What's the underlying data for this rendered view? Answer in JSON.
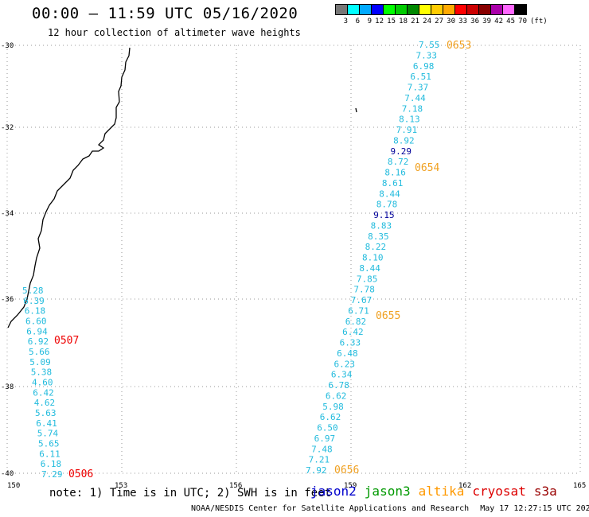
{
  "title": "00:00 – 11:59 UTC 05/16/2020",
  "subtitle": "12 hour collection of altimeter wave heights",
  "legend": {
    "labels": [
      "3",
      "6",
      "9",
      "12",
      "15",
      "18",
      "21",
      "24",
      "27",
      "30",
      "33",
      "36",
      "39",
      "42",
      "45",
      "70"
    ],
    "unit": "(ft)",
    "colors": [
      "#777777",
      "#00ffff",
      "#00aaff",
      "#0000ff",
      "#00ff00",
      "#00cc00",
      "#008800",
      "#ffff00",
      "#ffcc00",
      "#ffaa00",
      "#ff0000",
      "#cc0000",
      "#880000",
      "#aa00aa",
      "#ff66ff",
      "#000000"
    ]
  },
  "axes": {
    "lon_ticks": [
      "150",
      "153",
      "156",
      "159",
      "162",
      "165"
    ],
    "lat_ticks": [
      "-30",
      "-32",
      "-34",
      "-36",
      "-38",
      "-40"
    ]
  },
  "tracks": [
    {
      "satellite": "altika",
      "times": [
        {
          "label": "0653",
          "color": "#f0a020"
        },
        {
          "label": "0654",
          "color": "#f0a020"
        },
        {
          "label": "0655",
          "color": "#f0a020"
        },
        {
          "label": "0656",
          "color": "#f0a020"
        }
      ],
      "values": [
        {
          "v": "7.55",
          "c": "#22bbdd"
        },
        {
          "v": "7.33",
          "c": "#22bbdd"
        },
        {
          "v": "6.98",
          "c": "#22bbdd"
        },
        {
          "v": "6.51",
          "c": "#22bbdd"
        },
        {
          "v": "7.37",
          "c": "#22bbdd"
        },
        {
          "v": "7.44",
          "c": "#22bbdd"
        },
        {
          "v": "7.18",
          "c": "#22bbdd"
        },
        {
          "v": "8.13",
          "c": "#22bbdd"
        },
        {
          "v": "7.91",
          "c": "#22bbdd"
        },
        {
          "v": "8.92",
          "c": "#22bbdd"
        },
        {
          "v": "9.29",
          "c": "#000099"
        },
        {
          "v": "8.72",
          "c": "#22bbdd"
        },
        {
          "v": "8.16",
          "c": "#22bbdd"
        },
        {
          "v": "8.61",
          "c": "#22bbdd"
        },
        {
          "v": "8.44",
          "c": "#22bbdd"
        },
        {
          "v": "8.78",
          "c": "#22bbdd"
        },
        {
          "v": "9.15",
          "c": "#000099"
        },
        {
          "v": "8.83",
          "c": "#22bbdd"
        },
        {
          "v": "8.35",
          "c": "#22bbdd"
        },
        {
          "v": "8.22",
          "c": "#22bbdd"
        },
        {
          "v": "8.10",
          "c": "#22bbdd"
        },
        {
          "v": "8.44",
          "c": "#22bbdd"
        },
        {
          "v": "7.85",
          "c": "#22bbdd"
        },
        {
          "v": "7.78",
          "c": "#22bbdd"
        },
        {
          "v": "7.67",
          "c": "#22bbdd"
        },
        {
          "v": "6.71",
          "c": "#22bbdd"
        },
        {
          "v": "6.82",
          "c": "#22bbdd"
        },
        {
          "v": "6.42",
          "c": "#22bbdd"
        },
        {
          "v": "6.33",
          "c": "#22bbdd"
        },
        {
          "v": "6.48",
          "c": "#22bbdd"
        },
        {
          "v": "6.23",
          "c": "#22bbdd"
        },
        {
          "v": "6.34",
          "c": "#22bbdd"
        },
        {
          "v": "6.78",
          "c": "#22bbdd"
        },
        {
          "v": "6.62",
          "c": "#22bbdd"
        },
        {
          "v": "5.98",
          "c": "#22bbdd"
        },
        {
          "v": "6.62",
          "c": "#22bbdd"
        },
        {
          "v": "6.50",
          "c": "#22bbdd"
        },
        {
          "v": "6.97",
          "c": "#22bbdd"
        },
        {
          "v": "7.48",
          "c": "#22bbdd"
        },
        {
          "v": "7.21",
          "c": "#22bbdd"
        },
        {
          "v": "7.92",
          "c": "#22bbdd"
        }
      ]
    },
    {
      "satellite": "cryosat",
      "times": [
        {
          "label": "0507",
          "color": "#ee0000"
        },
        {
          "label": "0506",
          "color": "#ee0000"
        }
      ],
      "values": [
        {
          "v": "5.28",
          "c": "#22bbdd"
        },
        {
          "v": "6.39",
          "c": "#22bbdd"
        },
        {
          "v": "6.18",
          "c": "#22bbdd"
        },
        {
          "v": "6.60",
          "c": "#22bbdd"
        },
        {
          "v": "6.94",
          "c": "#22bbdd"
        },
        {
          "v": "6.92",
          "c": "#22bbdd"
        },
        {
          "v": "5.66",
          "c": "#22bbdd"
        },
        {
          "v": "5.09",
          "c": "#22bbdd"
        },
        {
          "v": "5.38",
          "c": "#22bbdd"
        },
        {
          "v": "4.60",
          "c": "#22bbdd"
        },
        {
          "v": "6.42",
          "c": "#22bbdd"
        },
        {
          "v": "4.62",
          "c": "#22bbdd"
        },
        {
          "v": "5.63",
          "c": "#22bbdd"
        },
        {
          "v": "6.41",
          "c": "#22bbdd"
        },
        {
          "v": "5.74",
          "c": "#22bbdd"
        },
        {
          "v": "5.65",
          "c": "#22bbdd"
        },
        {
          "v": "6.11",
          "c": "#22bbdd"
        },
        {
          "v": "6.18",
          "c": "#22bbdd"
        },
        {
          "v": "7.29",
          "c": "#22bbdd"
        }
      ]
    }
  ],
  "note": "note: 1) Time is in UTC; 2) SWH is in feet",
  "satellites": [
    {
      "name": "jason2",
      "color": "#0000cc"
    },
    {
      "name": "jason3",
      "color": "#009900"
    },
    {
      "name": "altika",
      "color": "#ff9900"
    },
    {
      "name": "cryosat",
      "color": "#dd0000"
    },
    {
      "name": "s3a",
      "color": "#990000"
    }
  ],
  "footer": {
    "agency": "NOAA/NESDIS Center for Satellite Applications and Research",
    "timestamp": "May 17 12:27:15 UTC 2020"
  }
}
